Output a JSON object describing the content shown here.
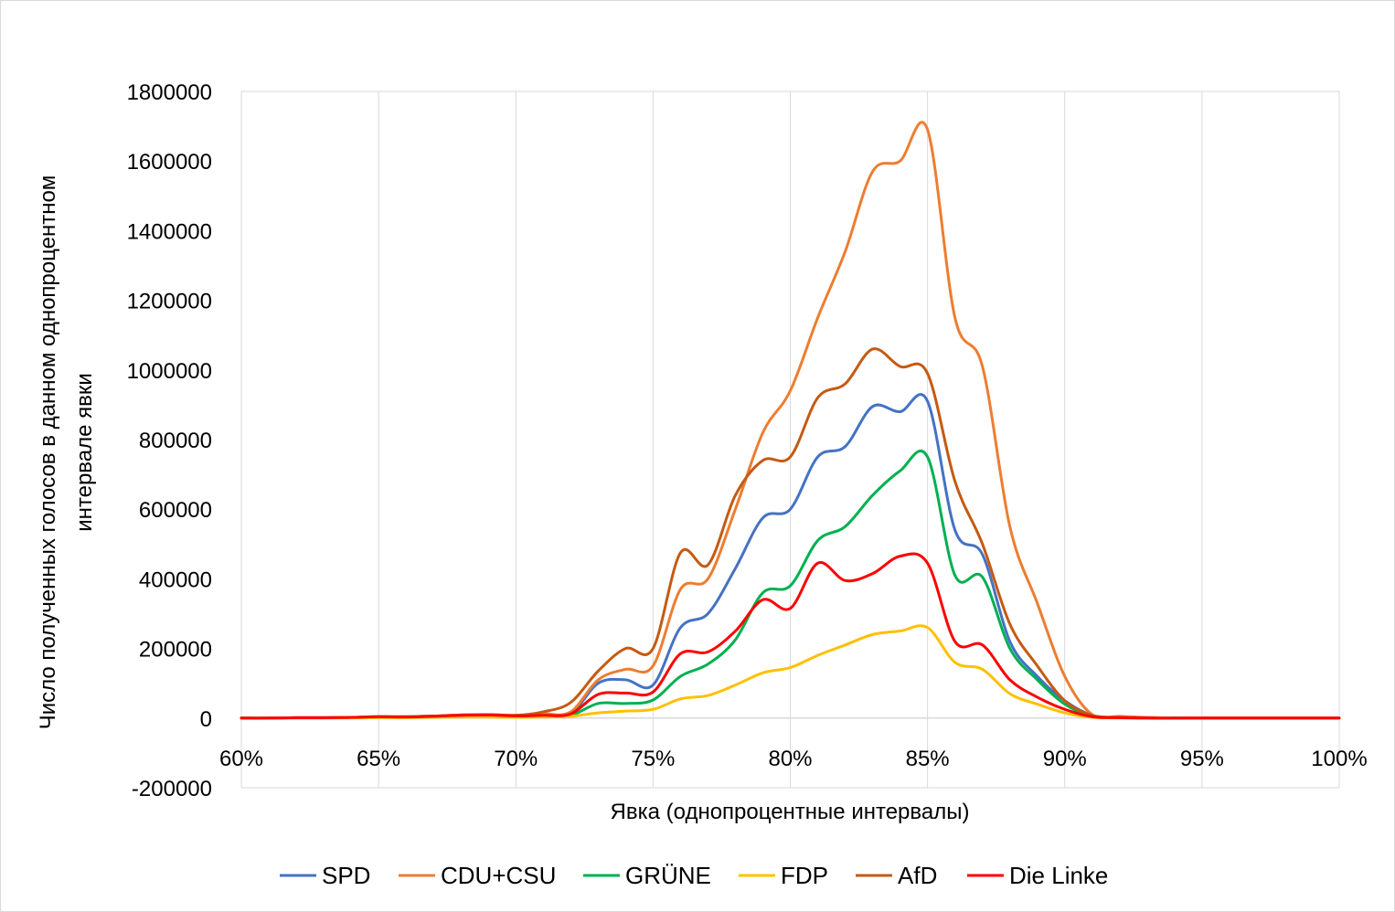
{
  "chart_data": {
    "type": "line",
    "title": "",
    "xlabel": "Явка (однопроцентные интервалы)",
    "ylabel_line1": "Число полученных голосов в данном однопроцентном",
    "ylabel_line2": "интервале явки",
    "xlim": [
      60,
      100
    ],
    "ylim": [
      -200000,
      1800000
    ],
    "x_ticks": [
      60,
      65,
      70,
      75,
      80,
      85,
      90,
      95,
      100
    ],
    "x_tick_labels": [
      "60%",
      "65%",
      "70%",
      "75%",
      "80%",
      "85%",
      "90%",
      "95%",
      "100%"
    ],
    "y_ticks": [
      -200000,
      0,
      200000,
      400000,
      600000,
      800000,
      1000000,
      1200000,
      1400000,
      1600000,
      1800000
    ],
    "y_tick_labels": [
      "-200000",
      "0",
      "200000",
      "400000",
      "600000",
      "800000",
      "1000000",
      "1200000",
      "1400000",
      "1600000",
      "1800000"
    ],
    "grid": "vertical",
    "legend_position": "bottom",
    "x": [
      60,
      61,
      62,
      63,
      64,
      65,
      66,
      67,
      68,
      69,
      70,
      71,
      72,
      73,
      74,
      75,
      76,
      77,
      78,
      79,
      80,
      81,
      82,
      83,
      84,
      85,
      86,
      87,
      88,
      89,
      90,
      91,
      92,
      93,
      94,
      95,
      96,
      97,
      98,
      99,
      100
    ],
    "series": [
      {
        "name": "SPD",
        "color": "#4472c4",
        "values": [
          0,
          0,
          1000,
          1000,
          2000,
          3000,
          3000,
          5000,
          7000,
          8000,
          6000,
          8000,
          12000,
          100000,
          110000,
          95000,
          260000,
          300000,
          430000,
          575000,
          600000,
          750000,
          780000,
          895000,
          880000,
          910000,
          540000,
          470000,
          220000,
          120000,
          50000,
          8000,
          2000,
          500,
          0,
          0,
          0,
          0,
          0,
          0,
          0
        ]
      },
      {
        "name": "CDU+CSU",
        "color": "#ed7d31",
        "values": [
          0,
          0,
          1000,
          1000,
          2000,
          4000,
          4000,
          6000,
          9000,
          10000,
          8000,
          12000,
          18000,
          110000,
          140000,
          150000,
          370000,
          400000,
          600000,
          820000,
          940000,
          1150000,
          1340000,
          1570000,
          1600000,
          1690000,
          1150000,
          1010000,
          550000,
          330000,
          120000,
          10000,
          5000,
          2000,
          0,
          0,
          0,
          0,
          0,
          0,
          0
        ]
      },
      {
        "name": "GRÜNE",
        "color": "#00b050",
        "values": [
          0,
          0,
          500,
          500,
          1000,
          2000,
          2000,
          3000,
          5000,
          6000,
          4000,
          5000,
          8000,
          42000,
          42000,
          52000,
          120000,
          155000,
          225000,
          360000,
          380000,
          510000,
          550000,
          640000,
          710000,
          750000,
          410000,
          405000,
          200000,
          110000,
          40000,
          5000,
          1000,
          0,
          0,
          0,
          0,
          0,
          0,
          0,
          0
        ]
      },
      {
        "name": "FDP",
        "color": "#ffc000",
        "values": [
          0,
          0,
          300,
          300,
          500,
          1000,
          1000,
          2000,
          3000,
          3000,
          2000,
          3000,
          5000,
          15000,
          20000,
          25000,
          55000,
          65000,
          95000,
          130000,
          145000,
          180000,
          210000,
          240000,
          250000,
          260000,
          160000,
          140000,
          70000,
          40000,
          15000,
          2000,
          500,
          0,
          0,
          0,
          0,
          0,
          0,
          0,
          0
        ]
      },
      {
        "name": "AfD",
        "color": "#c55a11",
        "values": [
          0,
          0,
          1000,
          1000,
          2000,
          4000,
          4000,
          6000,
          9000,
          10000,
          8000,
          18000,
          45000,
          135000,
          200000,
          200000,
          475000,
          440000,
          640000,
          740000,
          750000,
          920000,
          960000,
          1060000,
          1010000,
          990000,
          680000,
          500000,
          270000,
          150000,
          50000,
          8000,
          2000,
          500,
          0,
          0,
          0,
          0,
          0,
          0,
          0
        ]
      },
      {
        "name": "Die Linke",
        "color": "#ff0000",
        "values": [
          0,
          0,
          1000,
          1000,
          2000,
          4000,
          3000,
          5000,
          8000,
          9000,
          6000,
          8000,
          12000,
          68000,
          72000,
          75000,
          185000,
          190000,
          250000,
          340000,
          315000,
          445000,
          395000,
          415000,
          465000,
          445000,
          220000,
          210000,
          110000,
          60000,
          25000,
          4000,
          1000,
          0,
          0,
          0,
          0,
          0,
          0,
          0,
          0
        ]
      }
    ]
  }
}
